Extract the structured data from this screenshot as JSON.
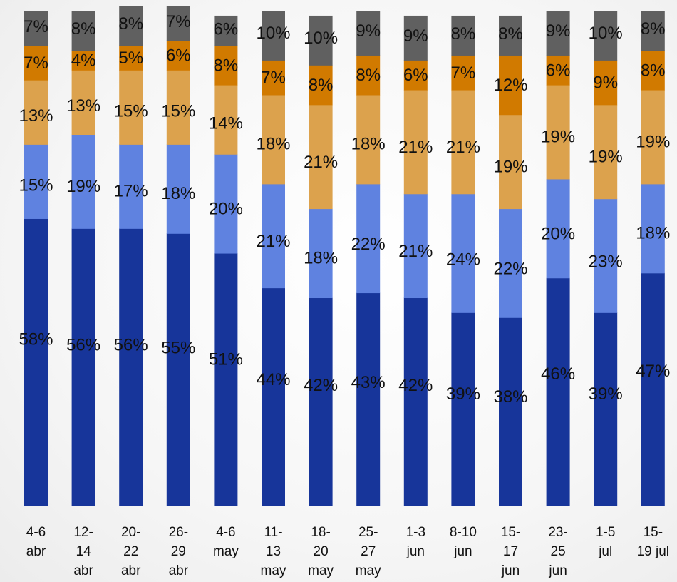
{
  "chart_data": {
    "type": "bar",
    "stacked": true,
    "normalized": true,
    "categories": [
      [
        "4-6",
        "abr"
      ],
      [
        "12-",
        "14",
        "abr"
      ],
      [
        "20-",
        "22",
        "abr"
      ],
      [
        "26-",
        "29",
        "abr"
      ],
      [
        "4-6",
        "may"
      ],
      [
        "11-",
        "13",
        "may"
      ],
      [
        "18-",
        "20",
        "may"
      ],
      [
        "25-",
        "27",
        "may"
      ],
      [
        "1-3",
        "jun"
      ],
      [
        "8-10",
        "jun"
      ],
      [
        "15-",
        "17",
        "jun"
      ],
      [
        "23-",
        "25",
        "jun"
      ],
      [
        "1-5",
        "jul"
      ],
      [
        "15-",
        "19 jul"
      ]
    ],
    "series": [
      {
        "color": "#17359a",
        "values": [
          58,
          56,
          56,
          55,
          51,
          44,
          42,
          43,
          42,
          39,
          38,
          46,
          39,
          47
        ]
      },
      {
        "color": "#5f82e0",
        "values": [
          15,
          19,
          17,
          18,
          20,
          21,
          18,
          22,
          21,
          24,
          22,
          20,
          23,
          18
        ]
      },
      {
        "color": "#dca24d",
        "values": [
          13,
          13,
          15,
          15,
          14,
          18,
          21,
          18,
          21,
          21,
          19,
          19,
          19,
          19
        ]
      },
      {
        "color": "#d17a00",
        "values": [
          7,
          4,
          5,
          6,
          8,
          7,
          8,
          8,
          6,
          7,
          12,
          6,
          9,
          8
        ]
      },
      {
        "color": "#606060",
        "values": [
          7,
          8,
          8,
          7,
          6,
          10,
          10,
          9,
          9,
          8,
          8,
          9,
          10,
          8
        ]
      }
    ],
    "value_suffix": "%",
    "ylim": [
      0,
      100
    ],
    "grid": false,
    "legend": "none",
    "xlabel": "",
    "ylabel": "",
    "title": ""
  }
}
